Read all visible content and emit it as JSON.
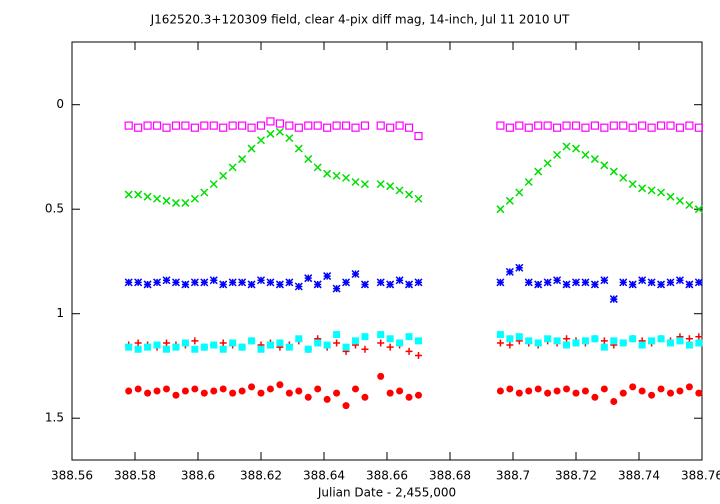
{
  "chart_data": {
    "type": "scatter",
    "title": "J162520.3+120309 field, clear 4-pix diff mag, 14-inch, Jul 11 2010 UT",
    "x_label": "Julian Date - 2,455,000",
    "x": [
      388.578,
      388.581,
      388.584,
      388.587,
      388.59,
      388.593,
      388.596,
      388.599,
      388.602,
      388.605,
      388.608,
      388.611,
      388.614,
      388.617,
      388.62,
      388.623,
      388.626,
      388.629,
      388.632,
      388.635,
      388.638,
      388.641,
      388.644,
      388.647,
      388.65,
      388.653,
      388.658,
      388.661,
      388.664,
      388.667,
      388.67,
      388.696,
      388.699,
      388.702,
      388.705,
      388.708,
      388.711,
      388.714,
      388.717,
      388.72,
      388.723,
      388.726,
      388.729,
      388.732,
      388.735,
      388.738,
      388.741,
      388.744,
      388.747,
      388.75,
      388.753,
      388.756,
      388.759
    ],
    "series": [
      {
        "color": "#ff00ff",
        "marker": "square-open",
        "values": [
          0.1,
          0.11,
          0.1,
          0.1,
          0.11,
          0.1,
          0.1,
          0.11,
          0.1,
          0.1,
          0.11,
          0.1,
          0.1,
          0.11,
          0.1,
          0.08,
          0.09,
          0.1,
          0.11,
          0.1,
          0.1,
          0.11,
          0.1,
          0.1,
          0.11,
          0.1,
          0.1,
          0.11,
          0.1,
          0.11,
          0.15,
          0.1,
          0.11,
          0.1,
          0.11,
          0.1,
          0.1,
          0.11,
          0.1,
          0.1,
          0.11,
          0.1,
          0.11,
          0.1,
          0.1,
          0.11,
          0.1,
          0.11,
          0.1,
          0.1,
          0.11,
          0.1,
          0.11
        ]
      },
      {
        "color": "#00e000",
        "marker": "x",
        "values": [
          0.43,
          0.43,
          0.44,
          0.45,
          0.46,
          0.47,
          0.47,
          0.45,
          0.42,
          0.38,
          0.34,
          0.3,
          0.26,
          0.21,
          0.17,
          0.14,
          0.13,
          0.16,
          0.21,
          0.26,
          0.3,
          0.33,
          0.34,
          0.35,
          0.37,
          0.38,
          0.38,
          0.39,
          0.41,
          0.43,
          0.45,
          0.5,
          0.46,
          0.42,
          0.37,
          0.32,
          0.28,
          0.24,
          0.2,
          0.21,
          0.24,
          0.26,
          0.29,
          0.32,
          0.35,
          0.38,
          0.4,
          0.41,
          0.42,
          0.44,
          0.46,
          0.48,
          0.5
        ]
      },
      {
        "color": "#0000ff",
        "marker": "star",
        "values": [
          0.85,
          0.85,
          0.86,
          0.85,
          0.84,
          0.85,
          0.86,
          0.85,
          0.85,
          0.84,
          0.86,
          0.85,
          0.85,
          0.86,
          0.84,
          0.85,
          0.86,
          0.85,
          0.87,
          0.83,
          0.86,
          0.82,
          0.88,
          0.85,
          0.81,
          0.86,
          0.85,
          0.86,
          0.84,
          0.86,
          0.85,
          0.85,
          0.8,
          0.78,
          0.85,
          0.86,
          0.85,
          0.84,
          0.86,
          0.85,
          0.85,
          0.86,
          0.84,
          0.93,
          0.85,
          0.86,
          0.84,
          0.85,
          0.86,
          0.85,
          0.84,
          0.86,
          0.85
        ]
      },
      {
        "color": "#ff0000",
        "marker": "plus",
        "values": [
          1.15,
          1.14,
          1.15,
          1.16,
          1.14,
          1.15,
          1.15,
          1.13,
          1.16,
          1.15,
          1.14,
          1.15,
          1.16,
          1.13,
          1.15,
          1.14,
          1.16,
          1.15,
          1.13,
          1.17,
          1.12,
          1.16,
          1.14,
          1.18,
          1.15,
          1.17,
          1.14,
          1.16,
          1.15,
          1.18,
          1.2,
          1.14,
          1.15,
          1.13,
          1.14,
          1.15,
          1.13,
          1.14,
          1.12,
          1.13,
          1.14,
          1.12,
          1.13,
          1.15,
          1.14,
          1.12,
          1.13,
          1.14,
          1.12,
          1.13,
          1.11,
          1.12,
          1.11
        ]
      },
      {
        "color": "#00ffff",
        "marker": "square",
        "values": [
          1.16,
          1.17,
          1.16,
          1.15,
          1.17,
          1.16,
          1.14,
          1.17,
          1.16,
          1.15,
          1.17,
          1.14,
          1.16,
          1.13,
          1.17,
          1.15,
          1.14,
          1.16,
          1.12,
          1.17,
          1.14,
          1.15,
          1.1,
          1.16,
          1.13,
          1.11,
          1.1,
          1.12,
          1.14,
          1.11,
          1.13,
          1.1,
          1.12,
          1.11,
          1.13,
          1.14,
          1.12,
          1.13,
          1.15,
          1.14,
          1.13,
          1.12,
          1.16,
          1.13,
          1.14,
          1.12,
          1.15,
          1.13,
          1.12,
          1.14,
          1.13,
          1.15,
          1.14
        ]
      },
      {
        "color": "#ff0000",
        "marker": "circle",
        "values": [
          1.37,
          1.36,
          1.38,
          1.37,
          1.36,
          1.39,
          1.37,
          1.36,
          1.38,
          1.37,
          1.36,
          1.38,
          1.37,
          1.35,
          1.38,
          1.36,
          1.34,
          1.38,
          1.37,
          1.4,
          1.36,
          1.41,
          1.38,
          1.44,
          1.36,
          1.4,
          1.3,
          1.38,
          1.37,
          1.4,
          1.39,
          1.37,
          1.36,
          1.38,
          1.37,
          1.36,
          1.38,
          1.37,
          1.36,
          1.38,
          1.37,
          1.4,
          1.36,
          1.42,
          1.38,
          1.35,
          1.37,
          1.39,
          1.36,
          1.38,
          1.37,
          1.35,
          1.38
        ]
      }
    ],
    "xlim": [
      388.56,
      388.76
    ],
    "xticks": [
      388.56,
      388.58,
      388.6,
      388.62,
      388.64,
      388.66,
      388.68,
      388.7,
      388.72,
      388.74,
      388.76
    ],
    "ylim": [
      -0.3,
      1.7
    ],
    "yticks": [
      0,
      0.5,
      1,
      1.5
    ],
    "y_reversed": true
  }
}
